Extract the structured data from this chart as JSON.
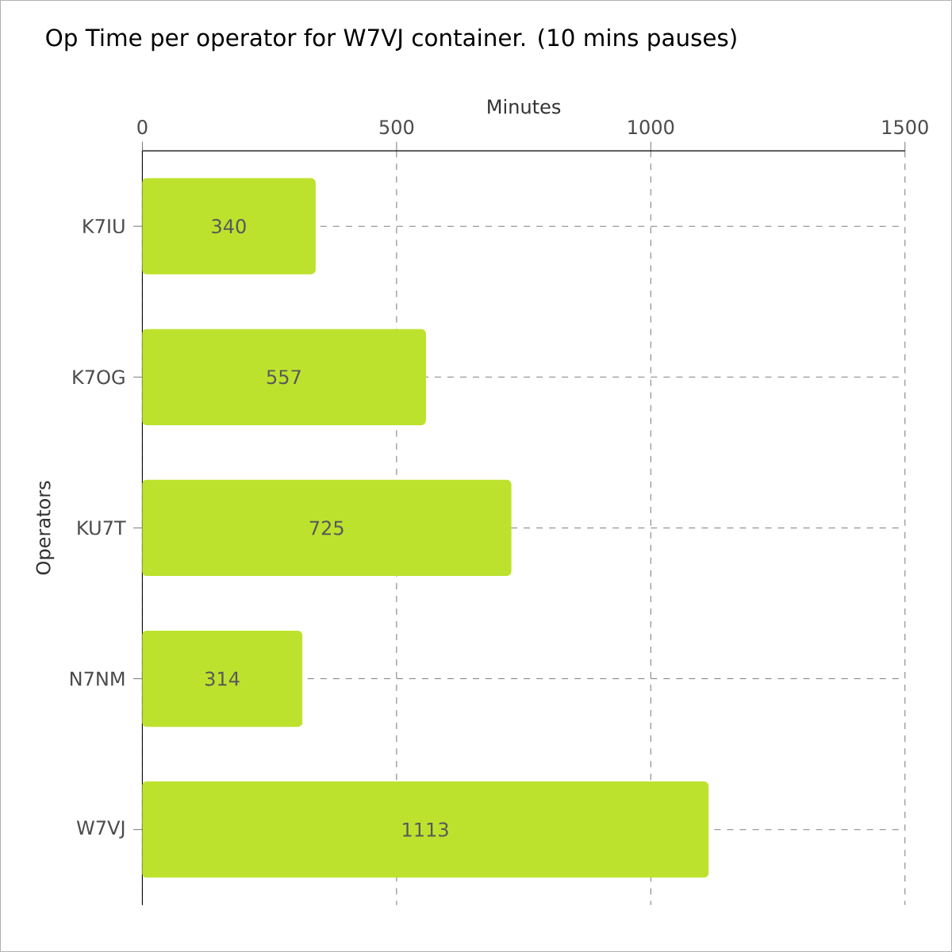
{
  "chart_data": {
    "type": "bar",
    "orientation": "horizontal",
    "title": "Op Time per operator for W7VJ container. (10 mins pauses)",
    "xlabel": "Minutes",
    "ylabel": "Operators",
    "categories": [
      "K7IU",
      "K7OG",
      "KU7T",
      "N7NM",
      "W7VJ"
    ],
    "values": [
      340,
      557,
      725,
      314,
      1113
    ],
    "color": "#bde22e",
    "xlim": [
      0,
      1500
    ],
    "xticks": [
      0,
      500,
      1000,
      1500
    ],
    "grid": true,
    "data_labels": true
  }
}
